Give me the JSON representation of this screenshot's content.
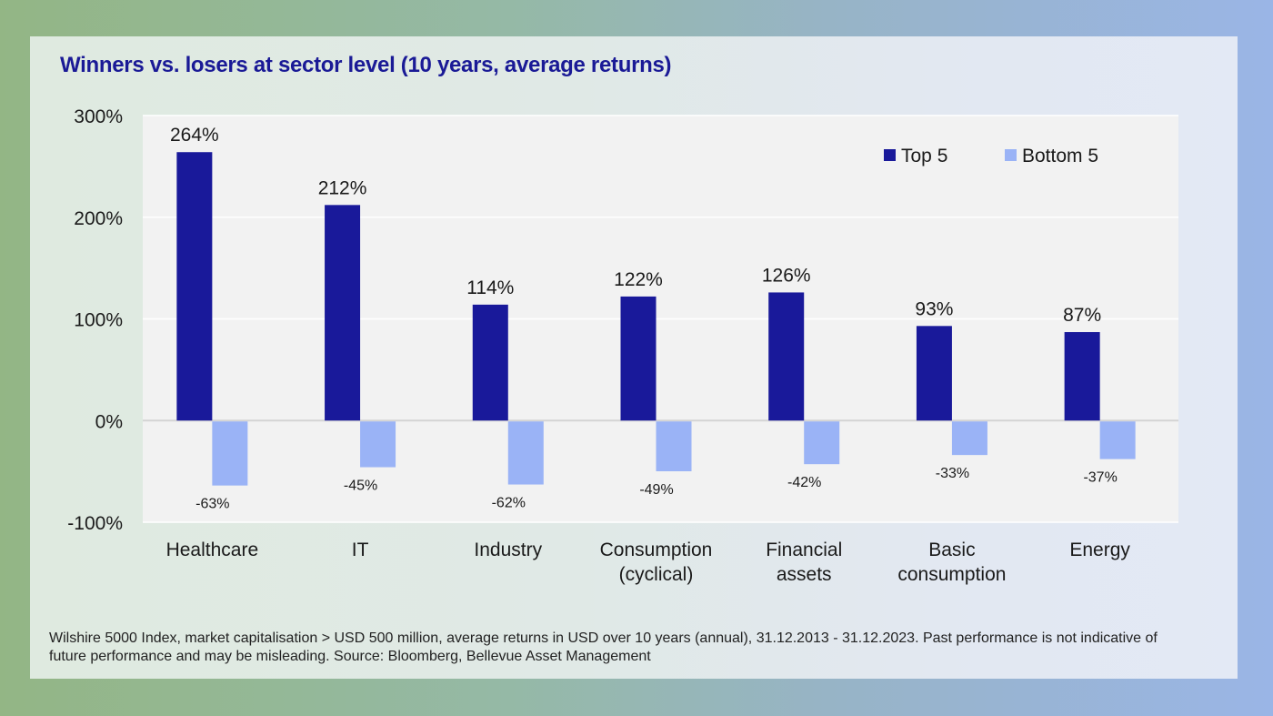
{
  "title": "Winners vs. losers at sector level (10 years, average returns)",
  "footnote_line1": "Wilshire 5000 Index, market capitalisation > USD 500 million, average returns in USD over 10 years (annual), 31.12.2013 - 31.12.2023. Past performance is not indicative of",
  "footnote_line2": "future performance and may be misleading. Source: Bloomberg, Bellevue Asset Management",
  "colors": {
    "top5": "#19199a",
    "bottom5": "#9ab3f6",
    "title": "#1a1a96"
  },
  "chart_data": {
    "type": "bar",
    "title": "Winners vs. losers at sector level (10 years, average returns)",
    "xlabel": "",
    "ylabel": "",
    "ylim": [
      -100,
      300
    ],
    "yticks": [
      -100,
      0,
      100,
      200,
      300
    ],
    "ytick_labels": [
      "-100%",
      "0%",
      "100%",
      "200%",
      "300%"
    ],
    "grid": true,
    "legend_position": "top-right",
    "categories": [
      [
        "Healthcare"
      ],
      [
        "IT"
      ],
      [
        "Industry"
      ],
      [
        "Consumption",
        "(cyclical)"
      ],
      [
        "Financial",
        "assets"
      ],
      [
        "Basic",
        "consumption"
      ],
      [
        "Energy"
      ]
    ],
    "series": [
      {
        "name": "Top 5",
        "values": [
          264,
          212,
          114,
          122,
          126,
          93,
          87
        ],
        "labels": [
          "264%",
          "212%",
          "114%",
          "122%",
          "126%",
          "93%",
          "87%"
        ]
      },
      {
        "name": "Bottom 5",
        "values": [
          -63,
          -45,
          -62,
          -49,
          -42,
          -33,
          -37
        ],
        "labels": [
          "-63%",
          "-45%",
          "-62%",
          "-49%",
          "-42%",
          "-33%",
          "-37%"
        ]
      }
    ]
  }
}
